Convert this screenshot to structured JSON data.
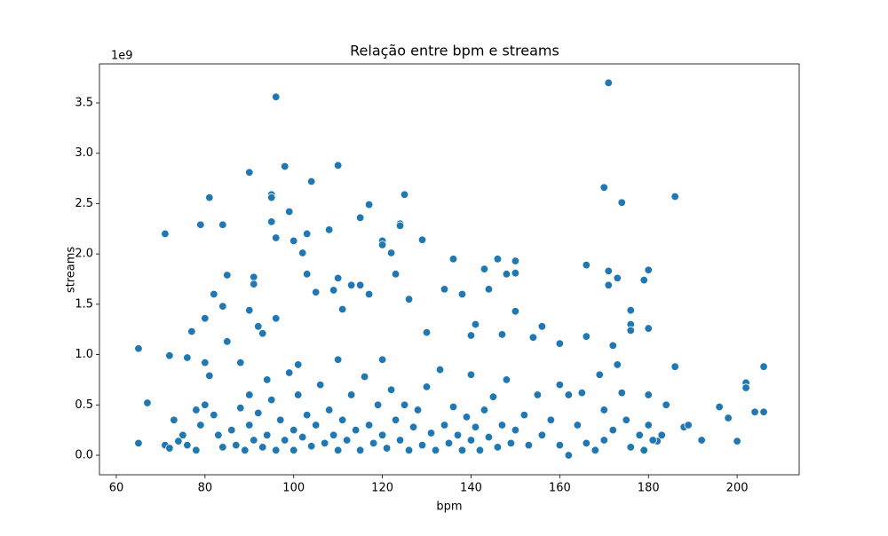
{
  "chart_data": {
    "type": "scatter",
    "title": "Relação entre bpm e streams",
    "x_label": "bpm",
    "y_label": "streams",
    "y_offset_label": "1e9",
    "color": "#1f77b4",
    "xlim": [
      56.2,
      214.0
    ],
    "ylim": [
      -0.194,
      3.888
    ],
    "xticks": [
      60,
      80,
      100,
      120,
      140,
      160,
      180,
      200
    ],
    "yticks": [
      {
        "value": 0,
        "label": "0.0"
      },
      0.5,
      {
        "value": 1,
        "label": "1.0"
      },
      1.5,
      {
        "value": 2,
        "label": "2.0"
      },
      2.5,
      {
        "value": 3,
        "label": "3.0"
      },
      3.5
    ],
    "x": [
      65,
      65,
      67,
      71,
      72,
      71,
      72,
      73,
      75,
      76,
      77,
      78,
      79,
      80,
      80,
      81,
      81,
      82,
      84,
      84,
      85,
      85,
      88,
      90,
      90,
      91,
      91,
      92,
      93,
      95,
      95,
      95,
      96,
      96,
      96,
      98,
      99,
      100,
      101,
      102,
      103,
      103,
      104,
      105,
      108,
      109,
      110,
      110,
      111,
      113,
      115,
      115,
      117,
      117,
      120,
      120,
      122,
      123,
      124,
      124,
      125,
      126,
      129,
      130,
      134,
      136,
      138,
      140,
      141,
      143,
      144,
      146,
      147,
      148,
      150,
      150,
      150,
      154,
      156,
      160,
      166,
      166,
      170,
      171,
      171,
      171,
      173,
      174,
      176,
      176,
      176,
      179,
      180,
      180,
      186,
      186,
      188,
      189,
      192,
      196,
      198,
      200,
      202,
      202,
      204,
      206,
      206,
      172,
      184,
      182,
      183,
      74,
      76,
      78,
      79,
      80,
      82,
      83,
      84,
      86,
      87,
      88,
      89,
      90,
      90,
      91,
      92,
      93,
      94,
      94,
      95,
      96,
      97,
      98,
      99,
      100,
      100,
      101,
      102,
      103,
      104,
      105,
      106,
      107,
      108,
      109,
      110,
      110,
      111,
      112,
      113,
      114,
      115,
      116,
      117,
      118,
      119,
      120,
      120,
      121,
      122,
      123,
      124,
      125,
      126,
      127,
      128,
      129,
      130,
      131,
      132,
      133,
      134,
      135,
      136,
      137,
      138,
      139,
      140,
      140,
      141,
      142,
      143,
      144,
      145,
      146,
      147,
      148,
      149,
      150,
      152,
      153,
      155,
      156,
      158,
      160,
      160,
      162,
      162,
      164,
      165,
      166,
      168,
      169,
      170,
      170,
      172,
      173,
      174,
      175,
      176,
      178,
      179,
      180,
      180,
      181
    ],
    "values": [
      1.06,
      0.12,
      0.52,
      2.2,
      0.99,
      0.1,
      0.07,
      0.35,
      0.2,
      0.97,
      1.23,
      0.45,
      2.29,
      1.36,
      0.92,
      2.56,
      0.79,
      1.6,
      2.29,
      1.48,
      1.79,
      1.13,
      0.92,
      2.81,
      1.44,
      1.77,
      1.7,
      1.28,
      1.21,
      2.59,
      2.56,
      2.32,
      3.56,
      2.16,
      1.36,
      2.87,
      2.42,
      2.13,
      0.9,
      2.01,
      2.2,
      1.8,
      2.72,
      1.62,
      2.24,
      1.64,
      2.88,
      1.76,
      1.45,
      1.69,
      1.69,
      2.36,
      2.49,
      1.6,
      2.13,
      2.09,
      2.01,
      1.8,
      2.3,
      2.28,
      2.59,
      1.55,
      2.14,
      1.22,
      1.65,
      1.95,
      1.6,
      1.19,
      1.3,
      1.85,
      1.65,
      1.95,
      1.2,
      1.8,
      1.93,
      1.81,
      1.43,
      1.17,
      1.28,
      1.11,
      1.89,
      1.18,
      2.66,
      3.7,
      1.83,
      1.69,
      1.76,
      2.51,
      1.44,
      1.3,
      1.24,
      1.74,
      1.84,
      1.26,
      2.57,
      0.88,
      0.28,
      0.3,
      0.15,
      0.48,
      0.37,
      0.14,
      0.72,
      0.67,
      0.43,
      0.88,
      0.43,
      1.09,
      0.5,
      0.14,
      0.2,
      0.14,
      0.1,
      0.05,
      0.3,
      0.5,
      0.4,
      0.2,
      0.08,
      0.25,
      0.1,
      0.47,
      0.05,
      0.6,
      0.3,
      0.15,
      0.42,
      0.08,
      0.75,
      0.2,
      0.55,
      0.05,
      0.35,
      0.15,
      0.82,
      0.25,
      0.05,
      0.6,
      0.18,
      0.4,
      0.09,
      0.3,
      0.7,
      0.12,
      0.45,
      0.2,
      0.95,
      0.05,
      0.35,
      0.15,
      0.6,
      0.25,
      0.05,
      0.78,
      0.3,
      0.12,
      0.5,
      0.2,
      0.95,
      0.07,
      0.65,
      0.35,
      0.15,
      0.5,
      0.05,
      0.28,
      0.45,
      0.1,
      0.68,
      0.22,
      0.05,
      0.85,
      0.3,
      0.12,
      0.48,
      0.2,
      0.05,
      0.38,
      0.8,
      0.15,
      0.28,
      0.05,
      0.45,
      0.18,
      0.58,
      0.08,
      0.3,
      0.75,
      0.12,
      0.25,
      0.4,
      0.1,
      0.6,
      0.2,
      0.35,
      0.7,
      0.1,
      0.0,
      0.6,
      0.3,
      0.62,
      0.12,
      0.05,
      0.8,
      0.45,
      0.15,
      0.25,
      0.9,
      0.62,
      0.35,
      0.08,
      0.2,
      0.05,
      0.6,
      0.3,
      0.15
    ]
  }
}
